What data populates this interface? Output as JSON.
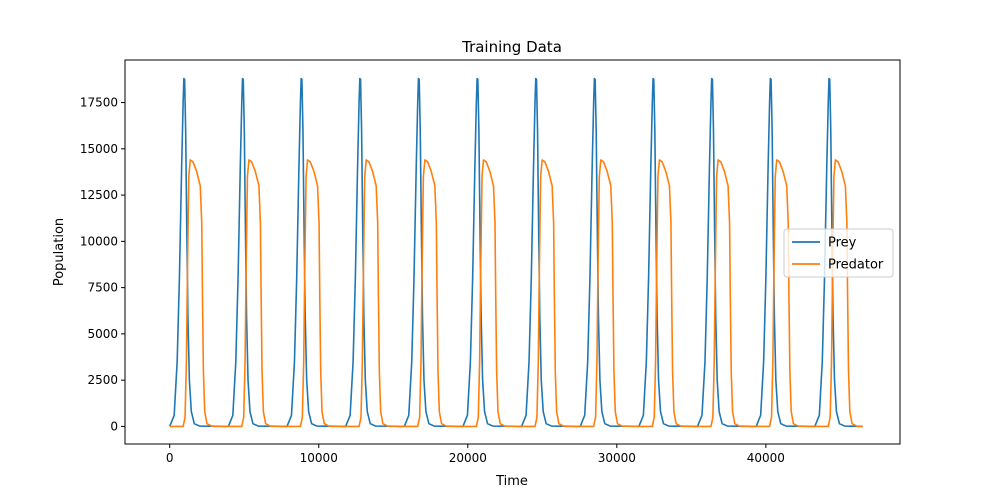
{
  "chart_data": {
    "type": "line",
    "title": "Training Data",
    "xlabel": "Time",
    "ylabel": "Population",
    "xlim": [
      -3000,
      49000
    ],
    "ylim": [
      -950,
      19800
    ],
    "xticks": [
      0,
      10000,
      20000,
      30000,
      40000
    ],
    "xtick_labels": [
      "0",
      "10000",
      "20000",
      "30000",
      "40000"
    ],
    "yticks": [
      0,
      2500,
      5000,
      7500,
      10000,
      12500,
      15000,
      17500
    ],
    "ytick_labels": [
      "0",
      "2500",
      "5000",
      "7500",
      "10000",
      "12500",
      "15000",
      "17500"
    ],
    "grid": false,
    "legend_position": "center-right",
    "x_range": [
      0,
      46500
    ],
    "cycles": 12,
    "period": 3935,
    "series": [
      {
        "name": "Prey",
        "color": "#1f77b4",
        "shape": [
          [
            0,
            0
          ],
          [
            300,
            600
          ],
          [
            500,
            3500
          ],
          [
            650,
            8000
          ],
          [
            800,
            14000
          ],
          [
            900,
            17500
          ],
          [
            950,
            18800
          ],
          [
            1000,
            18750
          ],
          [
            1070,
            16000
          ],
          [
            1140,
            11000
          ],
          [
            1220,
            6000
          ],
          [
            1320,
            2500
          ],
          [
            1450,
            800
          ],
          [
            1650,
            150
          ],
          [
            2000,
            20
          ],
          [
            3935,
            0
          ]
        ]
      },
      {
        "name": "Predator",
        "color": "#ff7f0e",
        "shape": [
          [
            0,
            0
          ],
          [
            900,
            0
          ],
          [
            1030,
            500
          ],
          [
            1120,
            3500
          ],
          [
            1200,
            9000
          ],
          [
            1280,
            13500
          ],
          [
            1380,
            14400
          ],
          [
            1560,
            14300
          ],
          [
            1800,
            13800
          ],
          [
            2050,
            13000
          ],
          [
            2150,
            11000
          ],
          [
            2200,
            7000
          ],
          [
            2260,
            3000
          ],
          [
            2350,
            800
          ],
          [
            2500,
            150
          ],
          [
            2800,
            20
          ],
          [
            3935,
            0
          ]
        ]
      }
    ]
  }
}
